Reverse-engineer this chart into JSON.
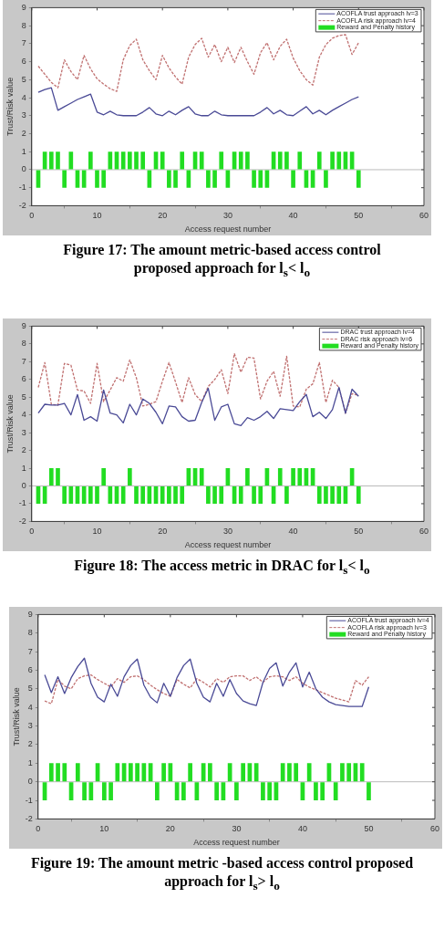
{
  "chart_data": [
    {
      "type": "line",
      "title": "Figure 17: The amount metric-based access control proposed approach for l$_{s}$< l$_{o}$",
      "xlabel": "Access request number",
      "ylabel": "Trust/Risk value",
      "x": [
        1,
        2,
        3,
        4,
        5,
        6,
        7,
        8,
        9,
        10,
        11,
        12,
        13,
        14,
        15,
        16,
        17,
        18,
        19,
        20,
        21,
        22,
        23,
        24,
        25,
        26,
        27,
        28,
        29,
        30,
        31,
        32,
        33,
        34,
        35,
        36,
        37,
        38,
        39,
        40,
        41,
        42,
        43,
        44,
        45,
        46,
        47,
        48,
        49,
        50
      ],
      "series": [
        {
          "name": "ACOFLA trust approach lv=3",
          "color": "#4a4a96",
          "values": [
            4.3,
            4.45,
            4.55,
            3.3,
            3.5,
            3.7,
            3.9,
            4.05,
            4.2,
            3.2,
            3.05,
            3.25,
            3.05,
            3.0,
            3.0,
            3.0,
            3.2,
            3.45,
            3.1,
            3.0,
            3.25,
            3.05,
            3.3,
            3.5,
            3.1,
            3.0,
            3.0,
            3.25,
            3.05,
            3.0,
            3.0,
            3.0,
            3.0,
            3.0,
            3.2,
            3.45,
            3.1,
            3.3,
            3.05,
            3.0,
            3.25,
            3.5,
            3.1,
            3.3,
            3.05,
            3.3,
            3.5,
            3.7,
            3.9,
            4.05
          ]
        },
        {
          "name": "ACOFLA risk approach lv=4",
          "color": "#c07070",
          "line_style": "dashed",
          "values": [
            5.75,
            5.3,
            4.85,
            4.55,
            6.1,
            5.45,
            5.0,
            6.35,
            5.6,
            5.05,
            4.75,
            4.5,
            4.35,
            6.1,
            6.9,
            7.25,
            6.1,
            5.5,
            5.0,
            6.35,
            5.65,
            5.15,
            4.75,
            6.25,
            6.95,
            7.3,
            6.25,
            6.95,
            6.0,
            6.8,
            5.95,
            6.8,
            6.0,
            5.3,
            6.5,
            7.05,
            6.1,
            6.85,
            7.25,
            6.2,
            5.5,
            5.0,
            4.7,
            6.25,
            6.95,
            7.3,
            7.45,
            7.5,
            6.4,
            7.05
          ]
        },
        {
          "name": "Reward and Penalty history",
          "type": "bar",
          "color": "#22dd22",
          "values": [
            -1,
            1,
            1,
            1,
            -1,
            1,
            -1,
            -1,
            1,
            -1,
            -1,
            1,
            1,
            1,
            1,
            1,
            1,
            -1,
            1,
            1,
            -1,
            -1,
            1,
            -1,
            1,
            1,
            -1,
            -1,
            1,
            -1,
            1,
            1,
            1,
            -1,
            -1,
            -1,
            1,
            1,
            1,
            -1,
            1,
            -1,
            -1,
            1,
            -1,
            1,
            1,
            1,
            1,
            -1
          ]
        }
      ],
      "xlim": [
        0,
        60
      ],
      "xticks": [
        0,
        10,
        20,
        30,
        40,
        50,
        60
      ],
      "ylim": [
        -2,
        9
      ],
      "yticks": [
        -2,
        -1,
        0,
        1,
        2,
        3,
        4,
        5,
        6,
        7,
        8,
        9
      ],
      "ref_lines": [
        {
          "axis": "y",
          "value": 0,
          "color": "#bbbbbb"
        }
      ],
      "legend": "top right",
      "marker": "none",
      "grid": false
    },
    {
      "type": "line",
      "title": "Figure 18: The access metric in DRAC for l$_{s}$< l$_{o}$",
      "xlabel": "Access request number",
      "ylabel": "Trust/Risk value",
      "x": [
        1,
        2,
        3,
        4,
        5,
        6,
        7,
        8,
        9,
        10,
        11,
        12,
        13,
        14,
        15,
        16,
        17,
        18,
        19,
        20,
        21,
        22,
        23,
        24,
        25,
        26,
        27,
        28,
        29,
        30,
        31,
        32,
        33,
        34,
        35,
        36,
        37,
        38,
        39,
        40,
        41,
        42,
        43,
        44,
        45,
        46,
        47,
        48,
        49,
        50
      ],
      "series": [
        {
          "name": "DRAC trust approach lv=4",
          "color": "#4a4a96",
          "values": [
            4.1,
            4.6,
            4.55,
            4.55,
            4.65,
            4.0,
            5.15,
            3.7,
            3.9,
            3.65,
            5.4,
            4.1,
            4.0,
            3.55,
            4.6,
            4.0,
            4.9,
            4.65,
            4.15,
            3.5,
            4.5,
            4.45,
            3.9,
            3.65,
            3.7,
            4.7,
            5.5,
            3.7,
            4.45,
            4.6,
            3.5,
            3.4,
            3.85,
            3.7,
            3.9,
            4.2,
            3.8,
            4.35,
            4.3,
            4.25,
            4.75,
            5.15,
            3.9,
            4.15,
            3.8,
            4.3,
            5.55,
            4.1,
            5.45,
            5.05
          ]
        },
        {
          "name": "DRAC risk approach lv=6",
          "color": "#c07070",
          "line_style": "dashed",
          "values": [
            5.55,
            6.95,
            4.6,
            4.55,
            6.9,
            6.8,
            5.4,
            5.35,
            4.65,
            6.9,
            4.75,
            5.4,
            6.1,
            5.9,
            7.1,
            6.1,
            4.5,
            4.6,
            4.75,
            5.9,
            6.95,
            5.85,
            4.7,
            6.1,
            5.15,
            4.75,
            5.6,
            6.0,
            6.55,
            5.2,
            7.45,
            6.4,
            7.25,
            7.2,
            4.9,
            5.9,
            6.45,
            5.05,
            7.3,
            4.5,
            4.45,
            5.45,
            5.75,
            6.95,
            4.7,
            5.95,
            5.55,
            4.1,
            5.2,
            5.1
          ]
        },
        {
          "name": "Reward and Penalty history",
          "type": "bar",
          "color": "#22dd22",
          "values": [
            -1,
            -1,
            1,
            1,
            -1,
            -1,
            -1,
            -1,
            -1,
            -1,
            1,
            -1,
            -1,
            -1,
            1,
            -1,
            -1,
            -1,
            -1,
            -1,
            -1,
            -1,
            -1,
            1,
            1,
            1,
            -1,
            -1,
            -1,
            1,
            -1,
            -1,
            1,
            -1,
            -1,
            1,
            -1,
            1,
            -1,
            1,
            1,
            1,
            1,
            -1,
            -1,
            -1,
            -1,
            -1,
            1,
            -1
          ]
        }
      ],
      "xlim": [
        0,
        60
      ],
      "xticks": [
        0,
        10,
        20,
        30,
        40,
        50,
        60
      ],
      "ylim": [
        -2,
        9
      ],
      "yticks": [
        -2,
        -1,
        0,
        1,
        2,
        3,
        4,
        5,
        6,
        7,
        8,
        9
      ],
      "ref_lines": [
        {
          "axis": "y",
          "value": 0,
          "color": "#bbbbbb"
        }
      ],
      "legend": "top right",
      "marker": "none",
      "grid": false
    },
    {
      "type": "line",
      "title": "Figure 19: The amount metric -based access control proposed approach for l$_{s}$> l$_{o}$",
      "xlabel": "Access request number",
      "ylabel": "Trust/Risk value",
      "x": [
        1,
        2,
        3,
        4,
        5,
        6,
        7,
        8,
        9,
        10,
        11,
        12,
        13,
        14,
        15,
        16,
        17,
        18,
        19,
        20,
        21,
        22,
        23,
        24,
        25,
        26,
        27,
        28,
        29,
        30,
        31,
        32,
        33,
        34,
        35,
        36,
        37,
        38,
        39,
        40,
        41,
        42,
        43,
        44,
        45,
        46,
        47,
        48,
        49,
        50
      ],
      "series": [
        {
          "name": "ACOFLA trust approach lv=4",
          "color": "#4a4a96",
          "values": [
            5.75,
            4.8,
            5.65,
            4.75,
            5.6,
            6.2,
            6.65,
            5.3,
            4.55,
            4.3,
            5.25,
            4.6,
            5.65,
            6.25,
            6.6,
            5.2,
            4.55,
            4.25,
            5.3,
            4.6,
            5.6,
            6.25,
            6.6,
            5.3,
            4.55,
            4.3,
            5.3,
            4.6,
            5.5,
            4.75,
            4.35,
            4.2,
            4.1,
            5.35,
            6.1,
            6.4,
            5.15,
            5.9,
            6.4,
            5.1,
            5.9,
            5.0,
            4.55,
            4.3,
            4.15,
            4.1,
            4.05,
            4.05,
            4.05,
            5.1
          ]
        },
        {
          "name": "ACOFLA risk approach lv=3",
          "color": "#c07070",
          "line_style": "dashed",
          "values": [
            4.35,
            4.2,
            5.5,
            5.15,
            5.0,
            5.55,
            5.7,
            5.75,
            5.5,
            5.3,
            5.1,
            5.55,
            5.35,
            5.65,
            5.7,
            5.5,
            5.2,
            4.95,
            4.75,
            4.6,
            5.5,
            5.25,
            5.05,
            5.55,
            5.35,
            5.1,
            5.55,
            5.35,
            5.65,
            5.7,
            5.7,
            5.45,
            5.65,
            5.35,
            5.65,
            5.7,
            5.65,
            5.45,
            5.65,
            5.3,
            5.1,
            4.95,
            4.8,
            4.65,
            4.5,
            4.4,
            4.3,
            5.45,
            5.2,
            5.65
          ]
        },
        {
          "name": "Reward and Penalty history",
          "type": "bar",
          "color": "#22dd22",
          "values": [
            -1,
            1,
            1,
            1,
            -1,
            1,
            -1,
            -1,
            1,
            -1,
            -1,
            1,
            1,
            1,
            1,
            1,
            1,
            -1,
            1,
            1,
            -1,
            -1,
            1,
            -1,
            1,
            1,
            -1,
            -1,
            1,
            -1,
            1,
            1,
            1,
            -1,
            -1,
            -1,
            1,
            1,
            1,
            -1,
            1,
            -1,
            -1,
            1,
            -1,
            1,
            1,
            1,
            1,
            -1
          ]
        }
      ],
      "xlim": [
        0,
        60
      ],
      "xticks": [
        0,
        10,
        20,
        30,
        40,
        50,
        60
      ],
      "ylim": [
        -2,
        9
      ],
      "yticks": [
        -2,
        -1,
        0,
        1,
        2,
        3,
        4,
        5,
        6,
        7,
        8,
        9
      ],
      "ref_lines": [
        {
          "axis": "y",
          "value": 0,
          "color": "#bbbbbb"
        }
      ],
      "legend": "top right",
      "marker": "none",
      "grid": false
    }
  ]
}
